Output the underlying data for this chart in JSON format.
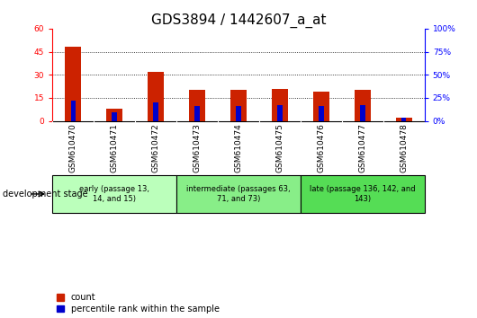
{
  "title": "GDS3894 / 1442607_a_at",
  "samples": [
    "GSM610470",
    "GSM610471",
    "GSM610472",
    "GSM610473",
    "GSM610474",
    "GSM610475",
    "GSM610476",
    "GSM610477",
    "GSM610478"
  ],
  "count_values": [
    48,
    8,
    32,
    20,
    20,
    21,
    19,
    20,
    2
  ],
  "percentile_values": [
    22,
    9,
    20,
    16,
    16,
    17,
    16,
    17,
    3
  ],
  "left_ylim": [
    0,
    60
  ],
  "right_ylim": [
    0,
    100
  ],
  "left_yticks": [
    0,
    15,
    30,
    45,
    60
  ],
  "right_yticks": [
    0,
    25,
    50,
    75,
    100
  ],
  "bar_color_red": "#CC2200",
  "bar_color_blue": "#0000CC",
  "bar_width": 0.4,
  "bg_color": "#FFFFFF",
  "plot_bg_color": "#FFFFFF",
  "stage_groups": [
    {
      "label": "early (passage 13,\n14, and 15)",
      "indices": [
        0,
        1,
        2
      ],
      "color": "#BBFFBB"
    },
    {
      "label": "intermediate (passages 63,\n71, and 73)",
      "indices": [
        3,
        4,
        5
      ],
      "color": "#88EE88"
    },
    {
      "label": "late (passage 136, 142, and\n143)",
      "indices": [
        6,
        7,
        8
      ],
      "color": "#55DD55"
    }
  ],
  "xtick_bg_color": "#CCCCCC",
  "development_stage_label": "development stage",
  "legend_count_label": "count",
  "legend_pct_label": "percentile rank within the sample",
  "title_fontsize": 11,
  "tick_fontsize": 6.5,
  "stage_fontsize": 6,
  "legend_fontsize": 7,
  "gridline_yticks": [
    15,
    30,
    45
  ]
}
